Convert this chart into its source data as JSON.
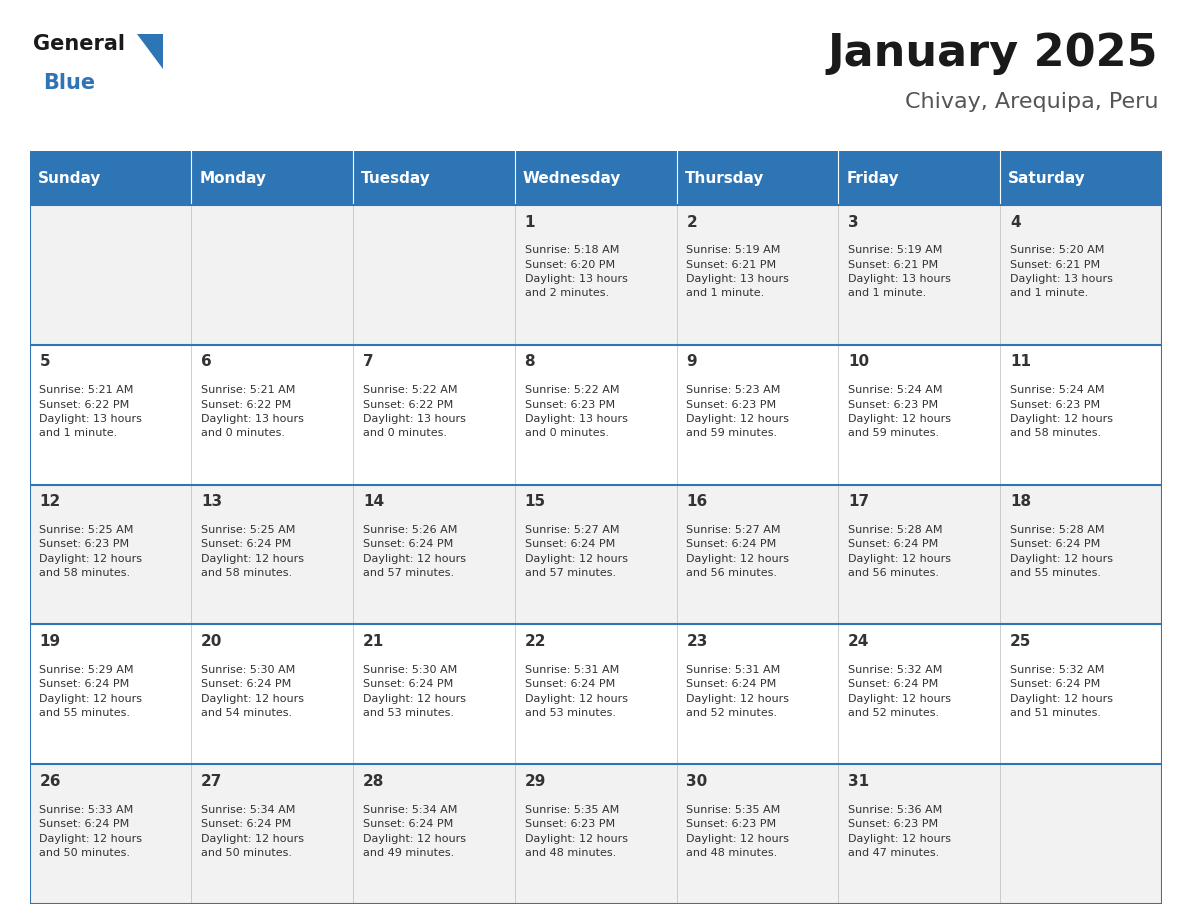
{
  "title": "January 2025",
  "subtitle": "Chivay, Arequipa, Peru",
  "days_of_week": [
    "Sunday",
    "Monday",
    "Tuesday",
    "Wednesday",
    "Thursday",
    "Friday",
    "Saturday"
  ],
  "header_bg": "#2E75B6",
  "header_text": "#FFFFFF",
  "row_bg_odd": "#F2F2F2",
  "row_bg_even": "#FFFFFF",
  "cell_border": "#2E75B6",
  "cell_border_light": "#BBBBBB",
  "day_number_color": "#333333",
  "info_text_color": "#333333",
  "logo_general_color": "#1a1a1a",
  "logo_blue_color": "#2E75B6",
  "title_fontsize": 32,
  "subtitle_fontsize": 16,
  "header_fontsize": 11,
  "day_num_fontsize": 11,
  "info_fontsize": 8,
  "logo_fontsize": 15,
  "calendar_data": [
    [
      "",
      "",
      "",
      "1\nSunrise: 5:18 AM\nSunset: 6:20 PM\nDaylight: 13 hours\nand 2 minutes.",
      "2\nSunrise: 5:19 AM\nSunset: 6:21 PM\nDaylight: 13 hours\nand 1 minute.",
      "3\nSunrise: 5:19 AM\nSunset: 6:21 PM\nDaylight: 13 hours\nand 1 minute.",
      "4\nSunrise: 5:20 AM\nSunset: 6:21 PM\nDaylight: 13 hours\nand 1 minute."
    ],
    [
      "5\nSunrise: 5:21 AM\nSunset: 6:22 PM\nDaylight: 13 hours\nand 1 minute.",
      "6\nSunrise: 5:21 AM\nSunset: 6:22 PM\nDaylight: 13 hours\nand 0 minutes.",
      "7\nSunrise: 5:22 AM\nSunset: 6:22 PM\nDaylight: 13 hours\nand 0 minutes.",
      "8\nSunrise: 5:22 AM\nSunset: 6:23 PM\nDaylight: 13 hours\nand 0 minutes.",
      "9\nSunrise: 5:23 AM\nSunset: 6:23 PM\nDaylight: 12 hours\nand 59 minutes.",
      "10\nSunrise: 5:24 AM\nSunset: 6:23 PM\nDaylight: 12 hours\nand 59 minutes.",
      "11\nSunrise: 5:24 AM\nSunset: 6:23 PM\nDaylight: 12 hours\nand 58 minutes."
    ],
    [
      "12\nSunrise: 5:25 AM\nSunset: 6:23 PM\nDaylight: 12 hours\nand 58 minutes.",
      "13\nSunrise: 5:25 AM\nSunset: 6:24 PM\nDaylight: 12 hours\nand 58 minutes.",
      "14\nSunrise: 5:26 AM\nSunset: 6:24 PM\nDaylight: 12 hours\nand 57 minutes.",
      "15\nSunrise: 5:27 AM\nSunset: 6:24 PM\nDaylight: 12 hours\nand 57 minutes.",
      "16\nSunrise: 5:27 AM\nSunset: 6:24 PM\nDaylight: 12 hours\nand 56 minutes.",
      "17\nSunrise: 5:28 AM\nSunset: 6:24 PM\nDaylight: 12 hours\nand 56 minutes.",
      "18\nSunrise: 5:28 AM\nSunset: 6:24 PM\nDaylight: 12 hours\nand 55 minutes."
    ],
    [
      "19\nSunrise: 5:29 AM\nSunset: 6:24 PM\nDaylight: 12 hours\nand 55 minutes.",
      "20\nSunrise: 5:30 AM\nSunset: 6:24 PM\nDaylight: 12 hours\nand 54 minutes.",
      "21\nSunrise: 5:30 AM\nSunset: 6:24 PM\nDaylight: 12 hours\nand 53 minutes.",
      "22\nSunrise: 5:31 AM\nSunset: 6:24 PM\nDaylight: 12 hours\nand 53 minutes.",
      "23\nSunrise: 5:31 AM\nSunset: 6:24 PM\nDaylight: 12 hours\nand 52 minutes.",
      "24\nSunrise: 5:32 AM\nSunset: 6:24 PM\nDaylight: 12 hours\nand 52 minutes.",
      "25\nSunrise: 5:32 AM\nSunset: 6:24 PM\nDaylight: 12 hours\nand 51 minutes."
    ],
    [
      "26\nSunrise: 5:33 AM\nSunset: 6:24 PM\nDaylight: 12 hours\nand 50 minutes.",
      "27\nSunrise: 5:34 AM\nSunset: 6:24 PM\nDaylight: 12 hours\nand 50 minutes.",
      "28\nSunrise: 5:34 AM\nSunset: 6:24 PM\nDaylight: 12 hours\nand 49 minutes.",
      "29\nSunrise: 5:35 AM\nSunset: 6:23 PM\nDaylight: 12 hours\nand 48 minutes.",
      "30\nSunrise: 5:35 AM\nSunset: 6:23 PM\nDaylight: 12 hours\nand 48 minutes.",
      "31\nSunrise: 5:36 AM\nSunset: 6:23 PM\nDaylight: 12 hours\nand 47 minutes.",
      ""
    ]
  ]
}
